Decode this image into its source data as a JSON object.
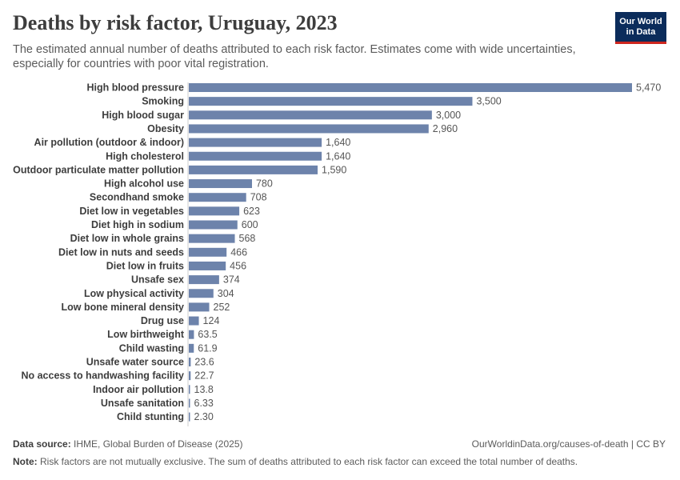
{
  "header": {
    "title": "Deaths by risk factor, Uruguay, 2023",
    "subtitle": "The estimated annual number of deaths attributed to each risk factor. Estimates come with wide uncertainties, especially for countries with poor vital registration."
  },
  "logo": {
    "line1": "Our World",
    "line2": "in Data"
  },
  "footer": {
    "source_label": "Data source:",
    "source_text": "IHME, Global Burden of Disease (2025)",
    "url": "OurWorldinData.org/causes-of-death | CC BY",
    "note_label": "Note:",
    "note_text": "Risk factors are not mutually exclusive. The sum of deaths attributed to each risk factor can exceed the total number of deaths."
  },
  "colors": {
    "bar": "#6d83ab",
    "title": "#3d3d3d",
    "logo_bg": "#0b2c5b",
    "logo_accent": "#ce261e"
  },
  "chart_data": {
    "type": "bar",
    "orientation": "horizontal",
    "title": "Deaths by risk factor, Uruguay, 2023",
    "xlabel": "",
    "ylabel": "",
    "categories": [
      "High blood pressure",
      "Smoking",
      "High blood sugar",
      "Obesity",
      "Air pollution (outdoor & indoor)",
      "High cholesterol",
      "Outdoor particulate matter pollution",
      "High alcohol use",
      "Secondhand smoke",
      "Diet low in vegetables",
      "Diet high in sodium",
      "Diet low in whole grains",
      "Diet low in nuts and seeds",
      "Diet low in fruits",
      "Unsafe sex",
      "Low physical activity",
      "Low bone mineral density",
      "Drug use",
      "Low birthweight",
      "Child wasting",
      "Unsafe water source",
      "No access to handwashing facility",
      "Indoor air pollution",
      "Unsafe sanitation",
      "Child stunting"
    ],
    "values": [
      5470,
      3500,
      3000,
      2960,
      1640,
      1640,
      1590,
      780,
      708,
      623,
      600,
      568,
      466,
      456,
      374,
      304,
      252,
      124,
      63.5,
      61.9,
      23.6,
      22.7,
      13.8,
      6.33,
      2.3
    ],
    "value_labels": [
      "5,470",
      "3,500",
      "3,000",
      "2,960",
      "1,640",
      "1,640",
      "1,590",
      "780",
      "708",
      "623",
      "600",
      "568",
      "466",
      "456",
      "374",
      "304",
      "252",
      "124",
      "63.5",
      "61.9",
      "23.6",
      "22.7",
      "13.8",
      "6.33",
      "2.30"
    ],
    "xlim": [
      0,
      5470
    ]
  }
}
